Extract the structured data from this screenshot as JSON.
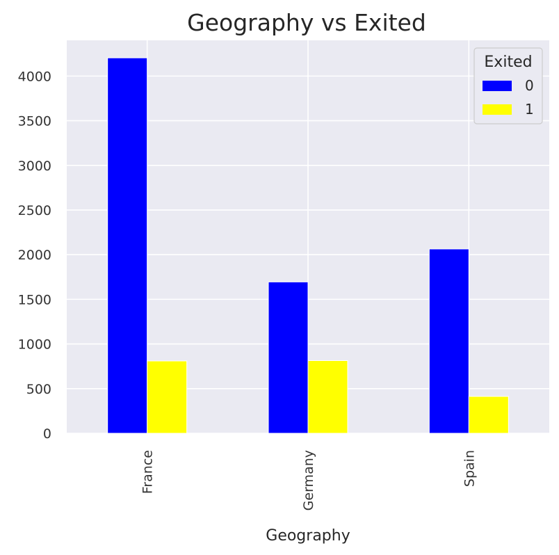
{
  "chart_data": {
    "type": "bar",
    "title": "Geography vs Exited",
    "xlabel": "Geography",
    "ylabel": "",
    "categories": [
      "France",
      "Germany",
      "Spain"
    ],
    "series": [
      {
        "name": "0",
        "values": [
          4204,
          1695,
          2064
        ],
        "color": "#0000ff"
      },
      {
        "name": "1",
        "values": [
          810,
          814,
          413
        ],
        "color": "#ffff00"
      }
    ],
    "ylim": [
      0,
      4400
    ],
    "yticks": [
      0,
      500,
      1000,
      1500,
      2000,
      2500,
      3000,
      3500,
      4000
    ],
    "grid": true,
    "legend": {
      "title": "Exited",
      "placement": "top-right"
    },
    "background_color": "#eaeaf2",
    "grid_color": "#ffffff"
  }
}
